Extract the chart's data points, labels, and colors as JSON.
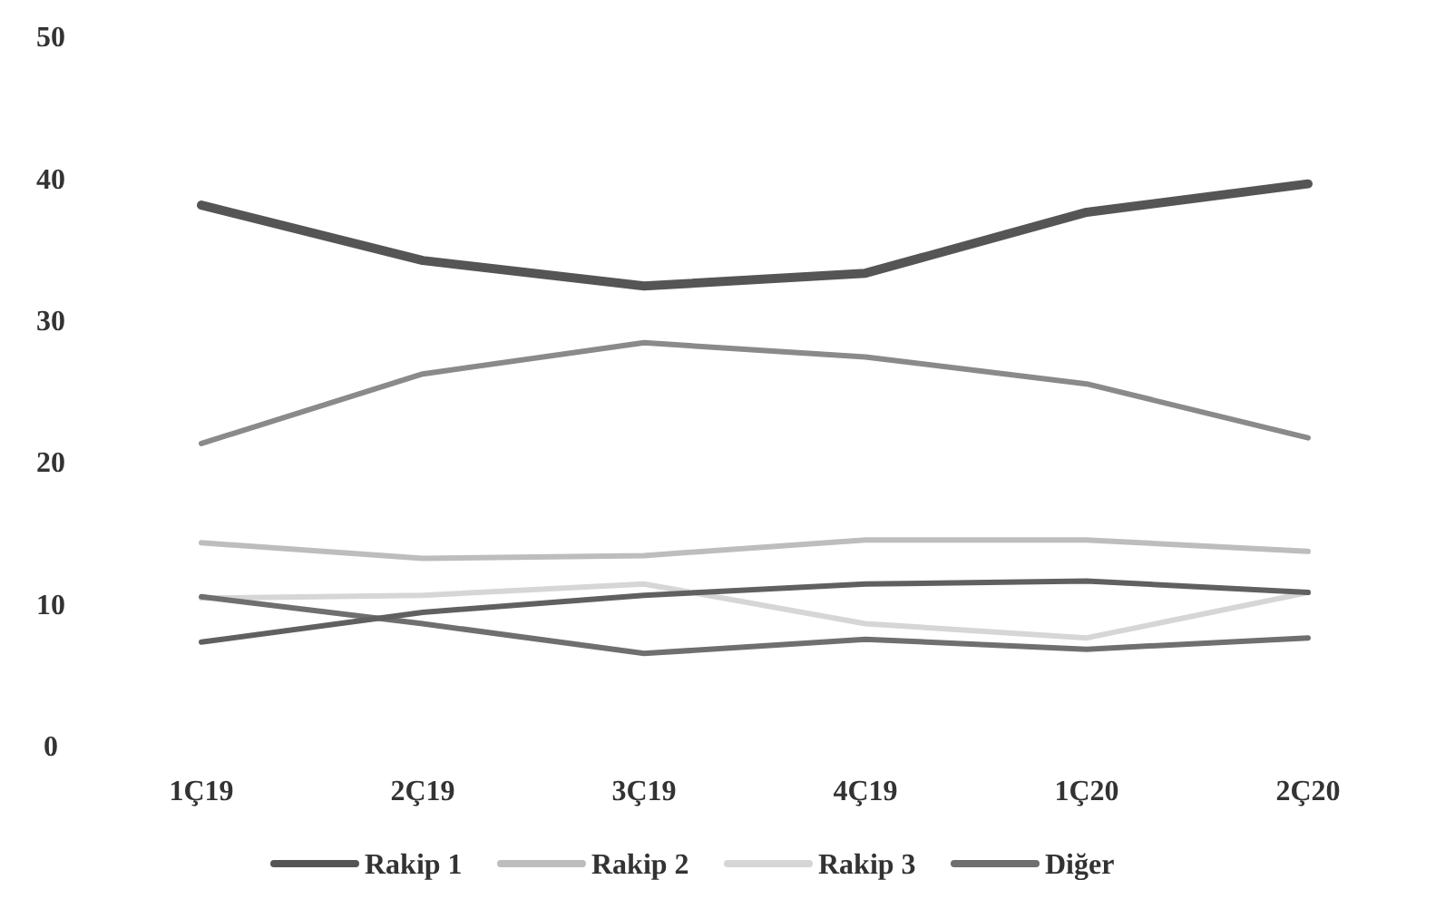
{
  "chart_data": {
    "type": "line",
    "categories": [
      "1Ç19",
      "2Ç19",
      "3Ç19",
      "4Ç19",
      "1Ç20",
      "2Ç20"
    ],
    "ylim": [
      0,
      50
    ],
    "yticks": [
      0,
      10,
      20,
      30,
      40,
      50
    ],
    "grid": false,
    "legend": "bottom",
    "marker": "none",
    "line_style": "solid",
    "series": [
      {
        "name": "Rakip 1",
        "color": "#555555",
        "values": [
          38.1,
          34.2,
          32.4,
          33.3,
          37.6,
          39.6
        ]
      },
      {
        "color": "#8a8a8a",
        "values": [
          21.3,
          26.2,
          28.4,
          27.4,
          25.5,
          21.7
        ]
      },
      {
        "name": "Rakip 2",
        "color": "#bdbdbd",
        "values": [
          14.3,
          13.2,
          13.4,
          14.5,
          14.5,
          13.7
        ]
      },
      {
        "name": "Rakip 3",
        "color": "#d6d6d6",
        "values": [
          10.4,
          10.6,
          11.4,
          8.6,
          7.6,
          10.8
        ]
      },
      {
        "name": "Diğer",
        "color": "#6f6f6f",
        "values": [
          10.5,
          8.6,
          6.5,
          7.5,
          6.8,
          7.6
        ]
      },
      {
        "color": "#606060",
        "values": [
          7.3,
          9.4,
          10.6,
          11.4,
          11.6,
          10.8
        ]
      }
    ]
  }
}
